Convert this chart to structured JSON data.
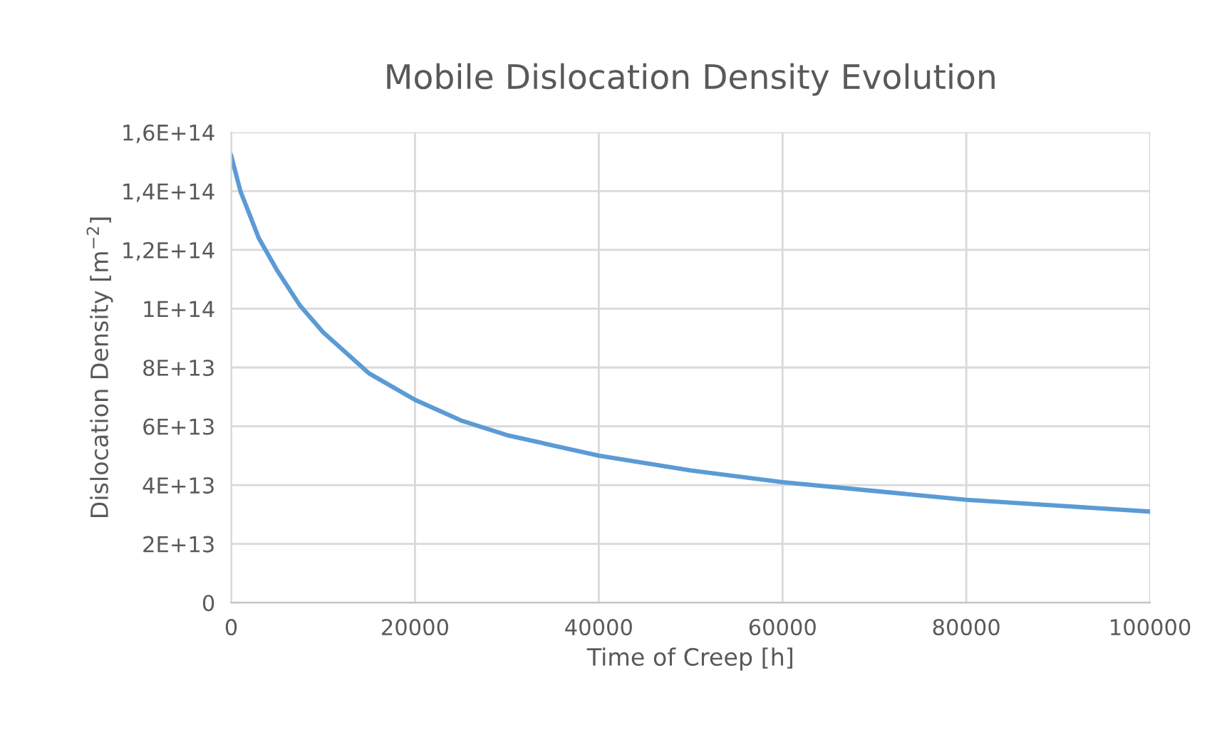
{
  "chart_data": {
    "type": "line",
    "title": "Mobile Dislocation Density Evolution",
    "xlabel": "Time of Creep [h]",
    "ylabel": "Dislocation Density [m$^{−2}$]",
    "x": [
      0,
      1000,
      2000,
      3000,
      5000,
      7500,
      10000,
      15000,
      20000,
      25000,
      30000,
      40000,
      50000,
      60000,
      70000,
      80000,
      90000,
      100000
    ],
    "series": [
      {
        "color": "#5b9bd5",
        "values": [
          152000000000000.0,
          140000000000000.0,
          132000000000000.0,
          124000000000000.0,
          113000000000000.0,
          101000000000000.0,
          92000000000000.0,
          78000000000000.0,
          69000000000000.0,
          62000000000000.0,
          57000000000000.0,
          50000000000000.0,
          45000000000000.0,
          41000000000000.0,
          38000000000000.0,
          35000000000000.0,
          33000000000000.0,
          31000000000000.0
        ]
      }
    ],
    "xlim": [
      0,
      100000
    ],
    "xticks": [
      0,
      20000,
      40000,
      60000,
      80000,
      100000
    ],
    "ylim": [
      0,
      160000000000000.0
    ],
    "yticks": [
      0,
      {
        "value": 20000000000000.0,
        "label": "2E+13"
      },
      {
        "value": 40000000000000.0,
        "label": "4E+13"
      },
      {
        "value": 60000000000000.0,
        "label": "6E+13"
      },
      {
        "value": 80000000000000.0,
        "label": "8E+13"
      },
      {
        "value": 100000000000000.0,
        "label": "1E+14"
      },
      {
        "value": 120000000000000.0,
        "label": "1,2E+14"
      },
      {
        "value": 140000000000000.0,
        "label": "1,4E+14"
      },
      {
        "value": 160000000000000.0,
        "label": "1,6E+14"
      }
    ],
    "grid": true,
    "marker": "none",
    "line_style": "solid"
  }
}
